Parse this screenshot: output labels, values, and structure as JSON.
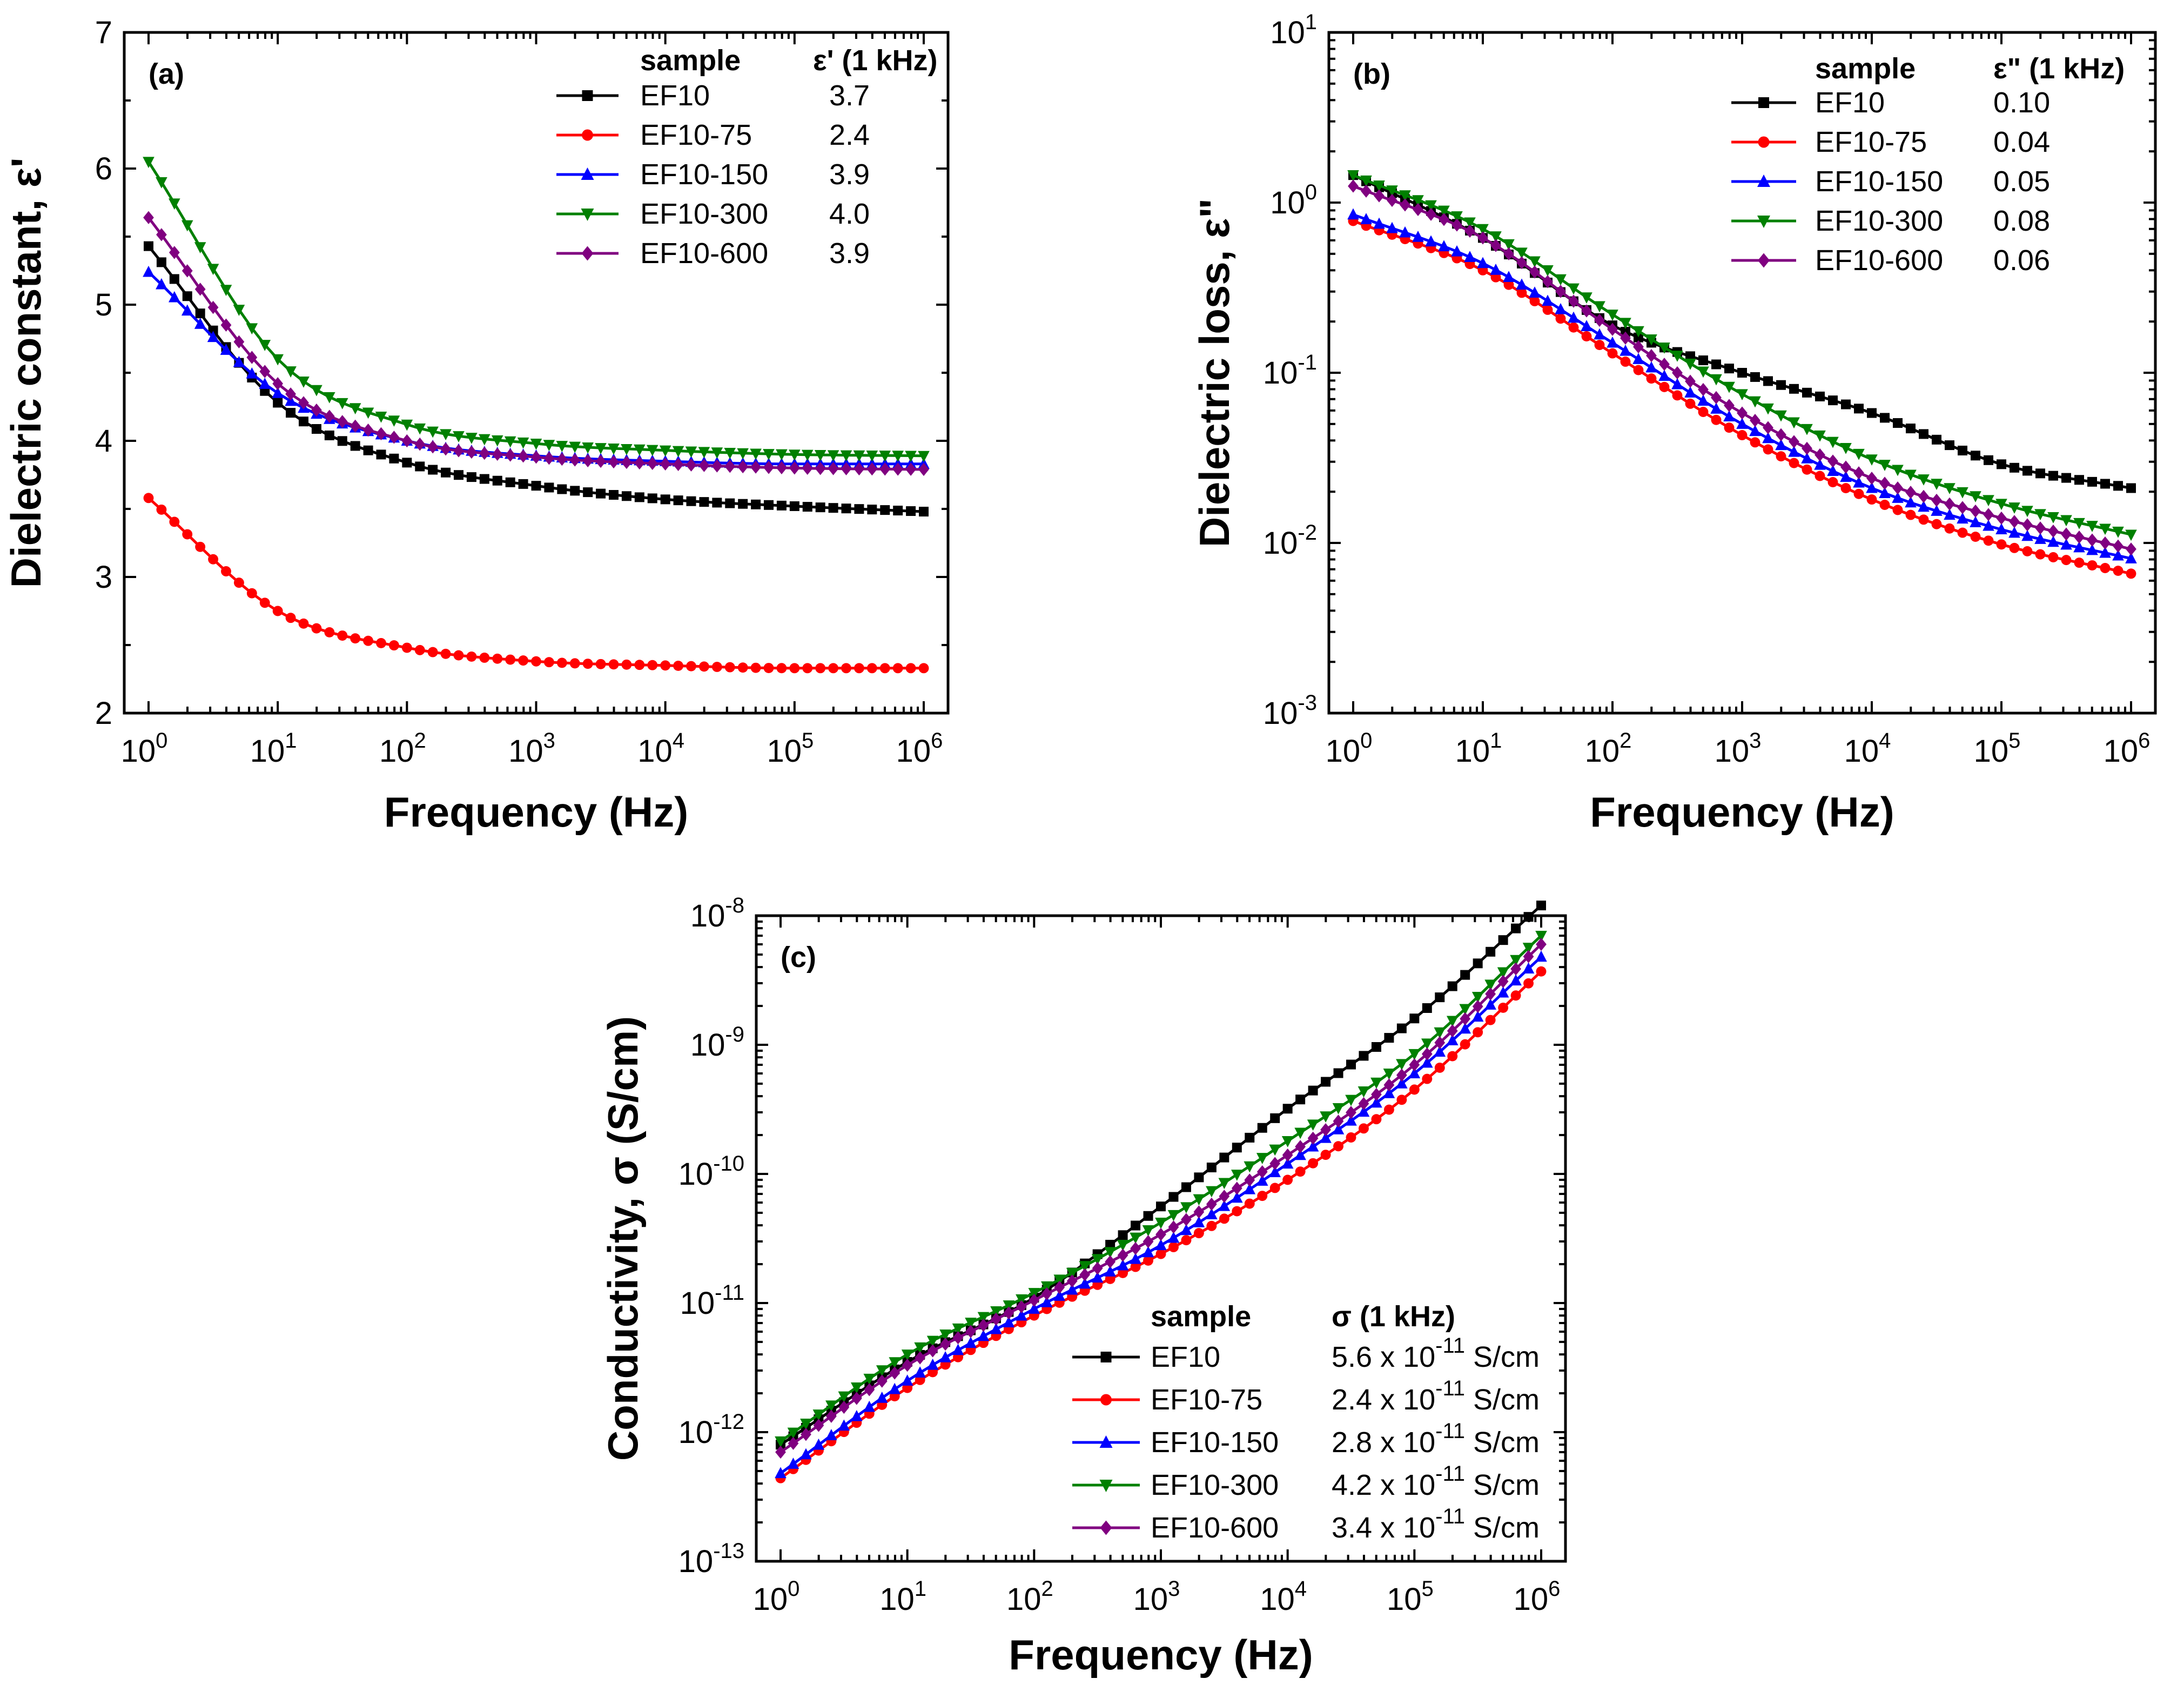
{
  "chart_data": [
    {
      "id": "a",
      "type": "line",
      "panel_label": "(a)",
      "xscale": "log",
      "yscale": "linear",
      "xlabel": "Frequency (Hz)",
      "ylabel": "Dielectric constant, ε'",
      "xlim": [
        1,
        1000000
      ],
      "ylim": [
        2,
        7
      ],
      "x_ticks": [
        1,
        10,
        100,
        1000,
        10000,
        100000,
        1000000
      ],
      "x_tick_labels": [
        [
          "10",
          "0"
        ],
        [
          "10",
          "1"
        ],
        [
          "10",
          "2"
        ],
        [
          "10",
          "3"
        ],
        [
          "10",
          "4"
        ],
        [
          "10",
          "5"
        ],
        [
          "10",
          "6"
        ]
      ],
      "y_ticks": [
        2,
        3,
        4,
        5,
        6,
        7
      ],
      "y_tick_labels": [
        [
          "2",
          ""
        ],
        [
          "3",
          ""
        ],
        [
          "4",
          ""
        ],
        [
          "5",
          ""
        ],
        [
          "6",
          ""
        ],
        [
          "7",
          ""
        ]
      ],
      "legend_position": "top-right",
      "legend_headers": [
        "sample",
        "ε' (1 kHz)"
      ],
      "series": [
        {
          "name": "EF10",
          "marker": "square",
          "color": "#000000",
          "legend_value": "3.7",
          "x": [
            1,
            10,
            100,
            1000,
            10000,
            100000,
            1000000
          ],
          "y": [
            5.43,
            4.28,
            3.84,
            3.67,
            3.57,
            3.52,
            3.48
          ]
        },
        {
          "name": "EF10-75",
          "marker": "circle",
          "color": "#ff0000",
          "legend_value": "2.4",
          "x": [
            1,
            10,
            100,
            1000,
            10000,
            100000,
            1000000
          ],
          "y": [
            3.58,
            2.75,
            2.48,
            2.38,
            2.35,
            2.33,
            2.33
          ]
        },
        {
          "name": "EF10-150",
          "marker": "triangle-up",
          "color": "#0000ff",
          "legend_value": "3.9",
          "x": [
            1,
            10,
            100,
            1000,
            10000,
            100000,
            1000000
          ],
          "y": [
            5.24,
            4.35,
            4.0,
            3.89,
            3.85,
            3.83,
            3.83
          ]
        },
        {
          "name": "EF10-300",
          "marker": "triangle-down",
          "color": "#008000",
          "legend_value": "4.0",
          "x": [
            1,
            10,
            100,
            1000,
            10000,
            100000,
            1000000
          ],
          "y": [
            6.05,
            4.6,
            4.12,
            3.98,
            3.93,
            3.9,
            3.89
          ]
        },
        {
          "name": "EF10-600",
          "marker": "diamond",
          "color": "#800080",
          "legend_value": "3.9",
          "x": [
            1,
            10,
            100,
            1000,
            10000,
            100000,
            1000000
          ],
          "y": [
            5.64,
            4.42,
            4.0,
            3.88,
            3.83,
            3.8,
            3.79
          ]
        }
      ]
    },
    {
      "id": "b",
      "type": "line",
      "panel_label": "(b)",
      "xscale": "log",
      "yscale": "log",
      "xlabel": "Frequency (Hz)",
      "ylabel": "Dielectric loss, ε\"",
      "xlim": [
        1,
        1000000
      ],
      "ylim": [
        0.001,
        10
      ],
      "x_ticks": [
        1,
        10,
        100,
        1000,
        10000,
        100000,
        1000000
      ],
      "x_tick_labels": [
        [
          "10",
          "0"
        ],
        [
          "10",
          "1"
        ],
        [
          "10",
          "2"
        ],
        [
          "10",
          "3"
        ],
        [
          "10",
          "4"
        ],
        [
          "10",
          "5"
        ],
        [
          "10",
          "6"
        ]
      ],
      "y_ticks": [
        0.001,
        0.01,
        0.1,
        1,
        10
      ],
      "y_tick_labels": [
        [
          "10",
          "-3"
        ],
        [
          "10",
          "-2"
        ],
        [
          "10",
          "-1"
        ],
        [
          "10",
          "0"
        ],
        [
          "10",
          "1"
        ]
      ],
      "legend_position": "top-right",
      "legend_headers": [
        "sample",
        "ε\" (1 kHz)"
      ],
      "series": [
        {
          "name": "EF10",
          "marker": "square",
          "color": "#000000",
          "legend_value": "0.10",
          "x": [
            1,
            10,
            100,
            1000,
            10000,
            100000,
            1000000
          ],
          "y": [
            1.45,
            0.62,
            0.19,
            0.1,
            0.058,
            0.029,
            0.021
          ]
        },
        {
          "name": "EF10-75",
          "marker": "circle",
          "color": "#ff0000",
          "legend_value": "0.04",
          "x": [
            1,
            10,
            100,
            1000,
            10000,
            100000,
            1000000
          ],
          "y": [
            0.78,
            0.4,
            0.13,
            0.043,
            0.018,
            0.0098,
            0.0066
          ]
        },
        {
          "name": "EF10-150",
          "marker": "triangle-up",
          "color": "#0000ff",
          "legend_value": "0.05",
          "x": [
            1,
            10,
            100,
            1000,
            10000,
            100000,
            1000000
          ],
          "y": [
            0.85,
            0.44,
            0.15,
            0.05,
            0.021,
            0.012,
            0.0081
          ]
        },
        {
          "name": "EF10-300",
          "marker": "triangle-down",
          "color": "#008000",
          "legend_value": "0.08",
          "x": [
            1,
            10,
            100,
            1000,
            10000,
            100000,
            1000000
          ],
          "y": [
            1.45,
            0.7,
            0.22,
            0.075,
            0.031,
            0.017,
            0.0112
          ]
        },
        {
          "name": "EF10-600",
          "marker": "diamond",
          "color": "#800080",
          "legend_value": "0.06",
          "x": [
            1,
            10,
            100,
            1000,
            10000,
            100000,
            1000000
          ],
          "y": [
            1.25,
            0.62,
            0.18,
            0.058,
            0.024,
            0.014,
            0.0092
          ]
        }
      ]
    },
    {
      "id": "c",
      "type": "line",
      "panel_label": "(c)",
      "xscale": "log",
      "yscale": "log",
      "xlabel": "Frequency (Hz)",
      "ylabel": "Conductivity, σ (S/cm)",
      "xlim": [
        1,
        1000000
      ],
      "ylim": [
        1e-13,
        1e-08
      ],
      "x_ticks": [
        1,
        10,
        100,
        1000,
        10000,
        100000,
        1000000
      ],
      "x_tick_labels": [
        [
          "10",
          "0"
        ],
        [
          "10",
          "1"
        ],
        [
          "10",
          "2"
        ],
        [
          "10",
          "3"
        ],
        [
          "10",
          "4"
        ],
        [
          "10",
          "5"
        ],
        [
          "10",
          "6"
        ]
      ],
      "y_ticks": [
        1e-13,
        1e-12,
        1e-11,
        1e-10,
        1e-09,
        1e-08
      ],
      "y_tick_labels": [
        [
          "10",
          "-13"
        ],
        [
          "10",
          "-12"
        ],
        [
          "10",
          "-11"
        ],
        [
          "10",
          "-10"
        ],
        [
          "10",
          "-9"
        ],
        [
          "10",
          "-8"
        ]
      ],
      "legend_position": "bottom-right",
      "legend_headers": [
        "sample",
        "σ (1 kHz)"
      ],
      "series": [
        {
          "name": "EF10",
          "marker": "square",
          "color": "#000000",
          "legend_value": [
            "5.6 x 10",
            "-11",
            " S/cm"
          ],
          "x": [
            1,
            10,
            100,
            1000,
            10000,
            100000,
            1000000
          ],
          "y": [
            8e-13,
            3.5e-12,
            1.1e-11,
            5.6e-11,
            3.2e-10,
            1.6e-09,
            1.2e-08
          ]
        },
        {
          "name": "EF10-75",
          "marker": "circle",
          "color": "#ff0000",
          "legend_value": [
            "2.4 x 10",
            "-11",
            " S/cm"
          ],
          "x": [
            1,
            10,
            100,
            1000,
            10000,
            100000,
            1000000
          ],
          "y": [
            4.4e-13,
            2.2e-12,
            8e-12,
            2.4e-11,
            9e-11,
            4.5e-10,
            3.7e-09
          ]
        },
        {
          "name": "EF10-150",
          "marker": "triangle-up",
          "color": "#0000ff",
          "legend_value": [
            "2.8 x 10",
            "-11",
            " S/cm"
          ],
          "x": [
            1,
            10,
            100,
            1000,
            10000,
            100000,
            1000000
          ],
          "y": [
            4.8e-13,
            2.5e-12,
            9e-12,
            2.8e-11,
            1.2e-10,
            6e-10,
            4.8e-09
          ]
        },
        {
          "name": "EF10-300",
          "marker": "triangle-down",
          "color": "#008000",
          "legend_value": [
            "4.2 x 10",
            "-11",
            " S/cm"
          ],
          "x": [
            1,
            10,
            100,
            1000,
            10000,
            100000,
            1000000
          ],
          "y": [
            8.5e-13,
            4e-12,
            1.2e-11,
            4.2e-11,
            1.8e-10,
            8.5e-10,
            7e-09
          ]
        },
        {
          "name": "EF10-600",
          "marker": "diamond",
          "color": "#800080",
          "legend_value": [
            "3.4 x 10",
            "-11",
            " S/cm"
          ],
          "x": [
            1,
            10,
            100,
            1000,
            10000,
            100000,
            1000000
          ],
          "y": [
            7e-13,
            3.3e-12,
            1.05e-11,
            3.4e-11,
            1.4e-10,
            7e-10,
            6e-09
          ]
        }
      ]
    }
  ]
}
